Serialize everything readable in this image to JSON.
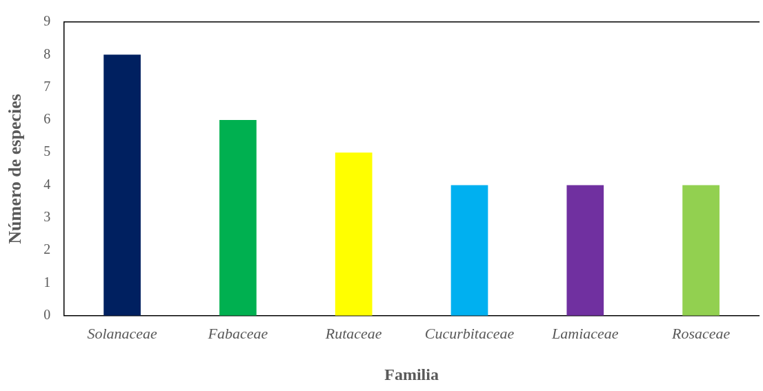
{
  "chart_data": {
    "type": "bar",
    "xlabel": "Familia",
    "ylabel": "Número de especies",
    "categories": [
      "Solanaceae",
      "Fabaceae",
      "Rutaceae",
      "Cucurbitaceae",
      "Lamiaceae",
      "Rosaceae"
    ],
    "values": [
      8,
      6,
      5,
      4,
      4,
      4
    ],
    "colors": [
      "#002060",
      "#00b050",
      "#ffff00",
      "#00b0f0",
      "#7030a0",
      "#92d050"
    ],
    "ylim": [
      0,
      9
    ],
    "yticks": [
      0,
      1,
      2,
      3,
      4,
      5,
      6,
      7,
      8,
      9
    ],
    "grid": false,
    "legend": false
  }
}
